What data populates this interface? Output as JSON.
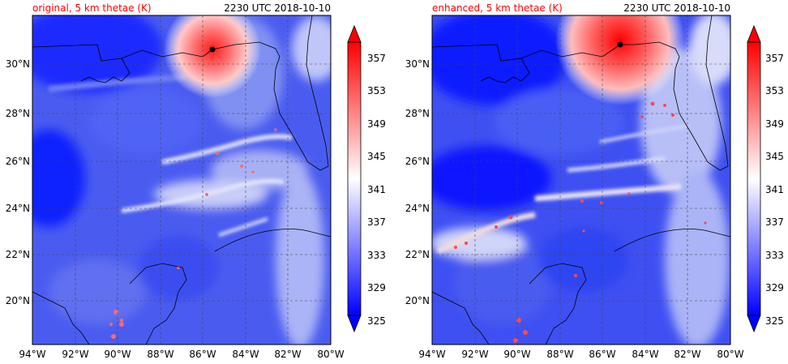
{
  "panels": [
    {
      "title_left": "original, 5 km thetae (K)",
      "title_right": "2230 UTC 2018-10-10",
      "storm_center": {
        "lon": -85.6,
        "lat": 30.6
      }
    },
    {
      "title_left": "enhanced, 5 km thetae (K)",
      "title_right": "2230 UTC 2018-10-10",
      "storm_center": {
        "lon": -85.3,
        "lat": 30.8
      }
    }
  ],
  "map": {
    "lon_range": [
      -94,
      -80
    ],
    "lat_range": [
      18.2,
      32.1
    ],
    "lon_ticks": [
      "94°W",
      "92°W",
      "90°W",
      "88°W",
      "86°W",
      "84°W",
      "82°W",
      "80°W"
    ],
    "lon_tick_values": [
      -94,
      -92,
      -90,
      -88,
      -86,
      -84,
      -82,
      -80
    ],
    "lat_ticks": [
      "30°N",
      "28°N",
      "26°N",
      "24°N",
      "22°N",
      "20°N"
    ],
    "lat_tick_values": [
      30,
      28,
      26,
      24,
      22,
      20
    ],
    "gridlines": "dashed"
  },
  "colorbar": {
    "tick_labels": [
      "357",
      "353",
      "349",
      "345",
      "341",
      "337",
      "333",
      "329",
      "325"
    ],
    "tick_values": [
      357,
      353,
      349,
      345,
      341,
      337,
      333,
      329,
      325
    ],
    "levels_min": 325,
    "levels_max": 359,
    "level_step": 2,
    "extend": "both"
  },
  "colors": {
    "title_left": "#ff0000",
    "low": "#0000ff",
    "mid": "#ffffff",
    "high": "#ff0000"
  }
}
